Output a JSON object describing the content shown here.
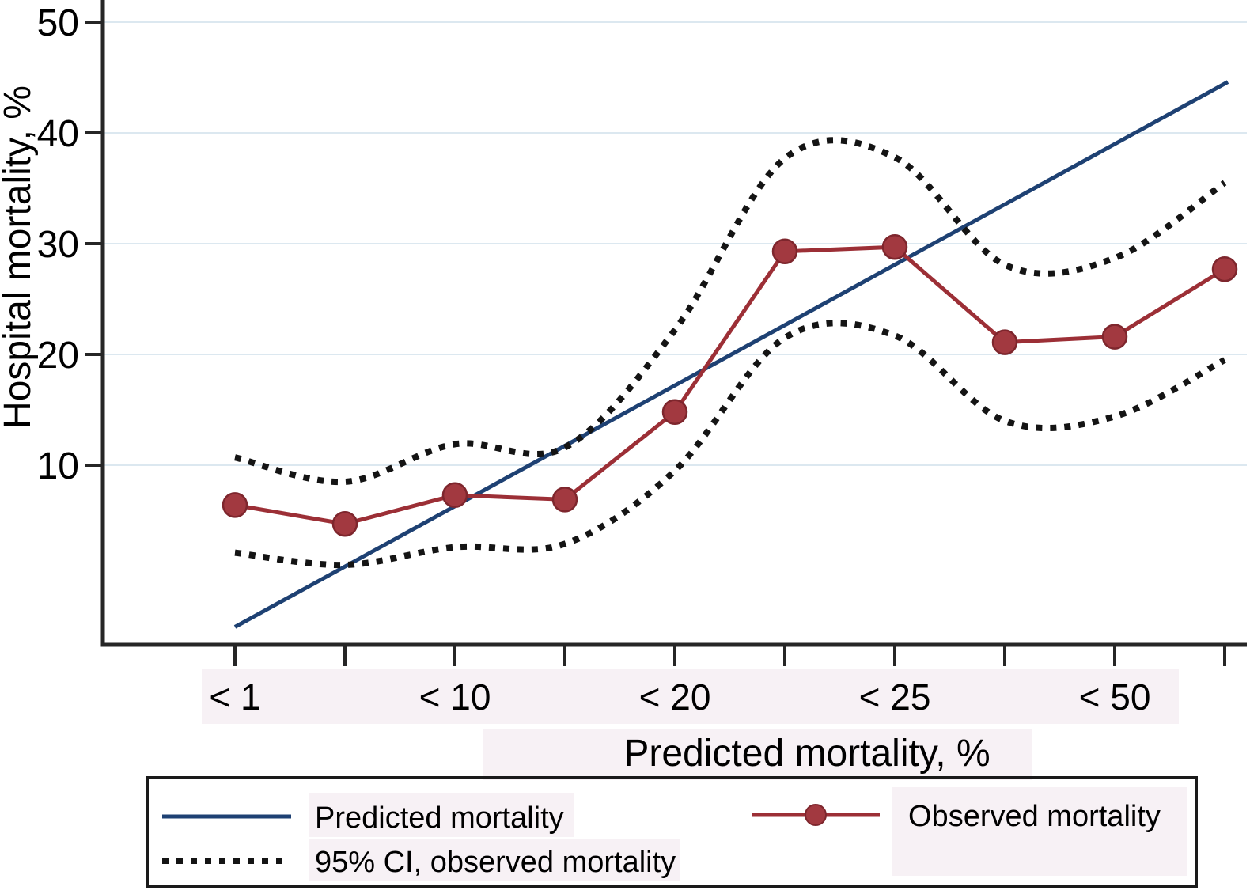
{
  "chart_data": {
    "type": "line",
    "title": "",
    "xlabel": "Predicted mortality, %",
    "ylabel": "Hospital mortality, %",
    "n_bins": 10,
    "x_ticks": [
      {
        "index": 0,
        "label": "< 1"
      },
      {
        "index": 2,
        "label": "< 10"
      },
      {
        "index": 4,
        "label": "< 20"
      },
      {
        "index": 6,
        "label": "< 25"
      },
      {
        "index": 8,
        "label": "< 50"
      }
    ],
    "y_ticks": [
      10,
      20,
      30,
      40,
      50
    ],
    "ylim": [
      -6.5,
      52
    ],
    "grid": "horizontal-only",
    "series": [
      {
        "name": "Predicted mortality",
        "style": "solid-straight-line",
        "start_value": -4.6,
        "end_value": 44.6
      },
      {
        "name": "Observed mortality",
        "style": "solid-line-with-markers",
        "values": [
          6.4,
          4.7,
          7.3,
          6.9,
          14.8,
          29.3,
          29.7,
          21.1,
          21.6,
          27.7
        ]
      },
      {
        "name": "95% CI, observed mortality (upper)",
        "style": "dotted",
        "values": [
          10.7,
          8.5,
          11.9,
          11.6,
          22.2,
          37.7,
          37.8,
          28.1,
          28.7,
          35.5
        ]
      },
      {
        "name": "95% CI, observed mortality (lower)",
        "style": "dotted",
        "values": [
          2.1,
          1.0,
          2.6,
          2.9,
          9.5,
          21.5,
          21.7,
          14.0,
          14.4,
          19.5
        ]
      }
    ],
    "colors": {
      "predicted": "#1e4173",
      "observed": "#9c2f36",
      "observed_marker": "#a23940",
      "observed_marker_edge": "#7e262d",
      "ci": "#141414",
      "grid": "#dce8f0",
      "axis": "#262626",
      "label_bg": "#f7f1f5",
      "legend_border": "#1a1a1a"
    }
  },
  "legend": {
    "items": [
      {
        "label": "Predicted mortality",
        "swatch": "solid-navy-line"
      },
      {
        "label": "95% CI, observed mortality",
        "swatch": "dotted-black-line"
      },
      {
        "label": "Observed mortality",
        "swatch": "red-line-with-dot"
      }
    ]
  }
}
